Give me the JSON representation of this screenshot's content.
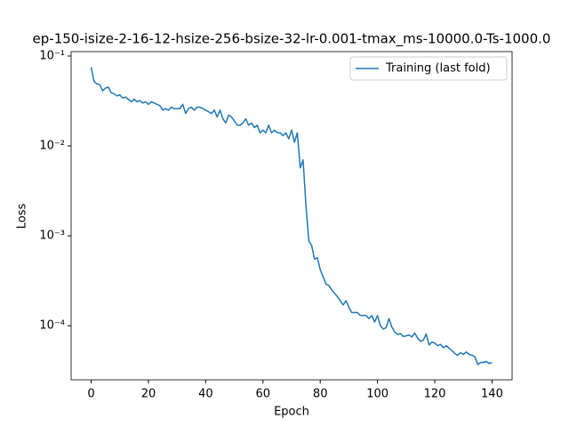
{
  "chart_data": {
    "type": "line",
    "title": "ep-150-isize-2-16-12-hsize-256-bsize-32-lr-0.001-tmax_ms-10000.0-Ts-1000.0",
    "x_label": "Epoch",
    "y_label": "Loss",
    "log_y": true,
    "legend": "upper right",
    "x": [
      0,
      1,
      2,
      3,
      4,
      5,
      6,
      7,
      8,
      9,
      10,
      11,
      12,
      13,
      14,
      15,
      16,
      17,
      18,
      19,
      20,
      21,
      22,
      23,
      24,
      25,
      26,
      27,
      28,
      29,
      30,
      31,
      32,
      33,
      34,
      35,
      36,
      37,
      38,
      39,
      40,
      41,
      42,
      43,
      44,
      45,
      46,
      47,
      48,
      49,
      50,
      51,
      52,
      53,
      54,
      55,
      56,
      57,
      58,
      59,
      60,
      61,
      62,
      63,
      64,
      65,
      66,
      67,
      68,
      69,
      70,
      71,
      72,
      73,
      74,
      75,
      76,
      77,
      78,
      79,
      80,
      81,
      82,
      83,
      84,
      85,
      86,
      87,
      88,
      89,
      90,
      91,
      92,
      93,
      94,
      95,
      96,
      97,
      98,
      99,
      100,
      101,
      102,
      103,
      104,
      105,
      106,
      107,
      108,
      109,
      110,
      111,
      112,
      113,
      114,
      115,
      116,
      117,
      118,
      119,
      120,
      121,
      122,
      123,
      124,
      125,
      126,
      127,
      128,
      129,
      130,
      131,
      132,
      133,
      134,
      135,
      136,
      137,
      138,
      139,
      140
    ],
    "series": [
      {
        "name": "Training (last fold)",
        "color": "#1f77b4",
        "values": [
          0.075,
          0.052,
          0.049,
          0.048,
          0.041,
          0.044,
          0.045,
          0.039,
          0.038,
          0.036,
          0.037,
          0.034,
          0.035,
          0.033,
          0.031,
          0.033,
          0.031,
          0.032,
          0.03,
          0.031,
          0.029,
          0.031,
          0.03,
          0.029,
          0.028,
          0.025,
          0.026,
          0.025,
          0.027,
          0.026,
          0.026,
          0.026,
          0.029,
          0.023,
          0.026,
          0.027,
          0.025,
          0.027,
          0.027,
          0.026,
          0.025,
          0.024,
          0.023,
          0.025,
          0.021,
          0.025,
          0.02,
          0.018,
          0.022,
          0.021,
          0.019,
          0.017,
          0.017,
          0.018,
          0.02,
          0.017,
          0.018,
          0.016,
          0.017,
          0.014,
          0.015,
          0.014,
          0.017,
          0.014,
          0.015,
          0.014,
          0.014,
          0.013,
          0.014,
          0.012,
          0.015,
          0.011,
          0.014,
          0.0057,
          0.007,
          0.0022,
          0.00088,
          0.00078,
          0.00055,
          0.00057,
          0.00042,
          0.00035,
          0.00029,
          0.00028,
          0.00025,
          0.00023,
          0.00021,
          0.00019,
          0.00017,
          0.00019,
          0.00016,
          0.00014,
          0.00014,
          0.00014,
          0.00013,
          0.00013,
          0.00013,
          0.00012,
          0.00013,
          0.00011,
          0.00013,
          0.0001,
          9.2e-05,
          9.5e-05,
          0.00012,
          9.7e-05,
          8.5e-05,
          8e-05,
          8.2e-05,
          7.6e-05,
          7.7e-05,
          7.9e-05,
          7.5e-05,
          8.3e-05,
          7.3e-05,
          6.7e-05,
          6.9e-05,
          8.1e-05,
          6.1e-05,
          6.6e-05,
          6.4e-05,
          6e-05,
          6.2e-05,
          5.7e-05,
          6e-05,
          5.6e-05,
          5.3e-05,
          4.9e-05,
          4.7e-05,
          5e-05,
          4.8e-05,
          5.1e-05,
          4.8e-05,
          4.7e-05,
          4.5e-05,
          3.7e-05,
          3.9e-05,
          3.9e-05,
          4e-05,
          3.8e-05,
          3.9e-05
        ]
      }
    ],
    "xlim": [
      -7,
      147
    ],
    "xticks": [
      0,
      20,
      40,
      60,
      80,
      100,
      120,
      140
    ],
    "ylim": [
      2.5e-05,
      0.112
    ],
    "yticks": [
      {
        "value": 0.0001,
        "label": "10⁻⁴"
      },
      {
        "value": 0.001,
        "label": "10⁻³"
      },
      {
        "value": 0.01,
        "label": "10⁻²"
      },
      {
        "value": 0.1,
        "label": "10⁻¹"
      }
    ]
  }
}
